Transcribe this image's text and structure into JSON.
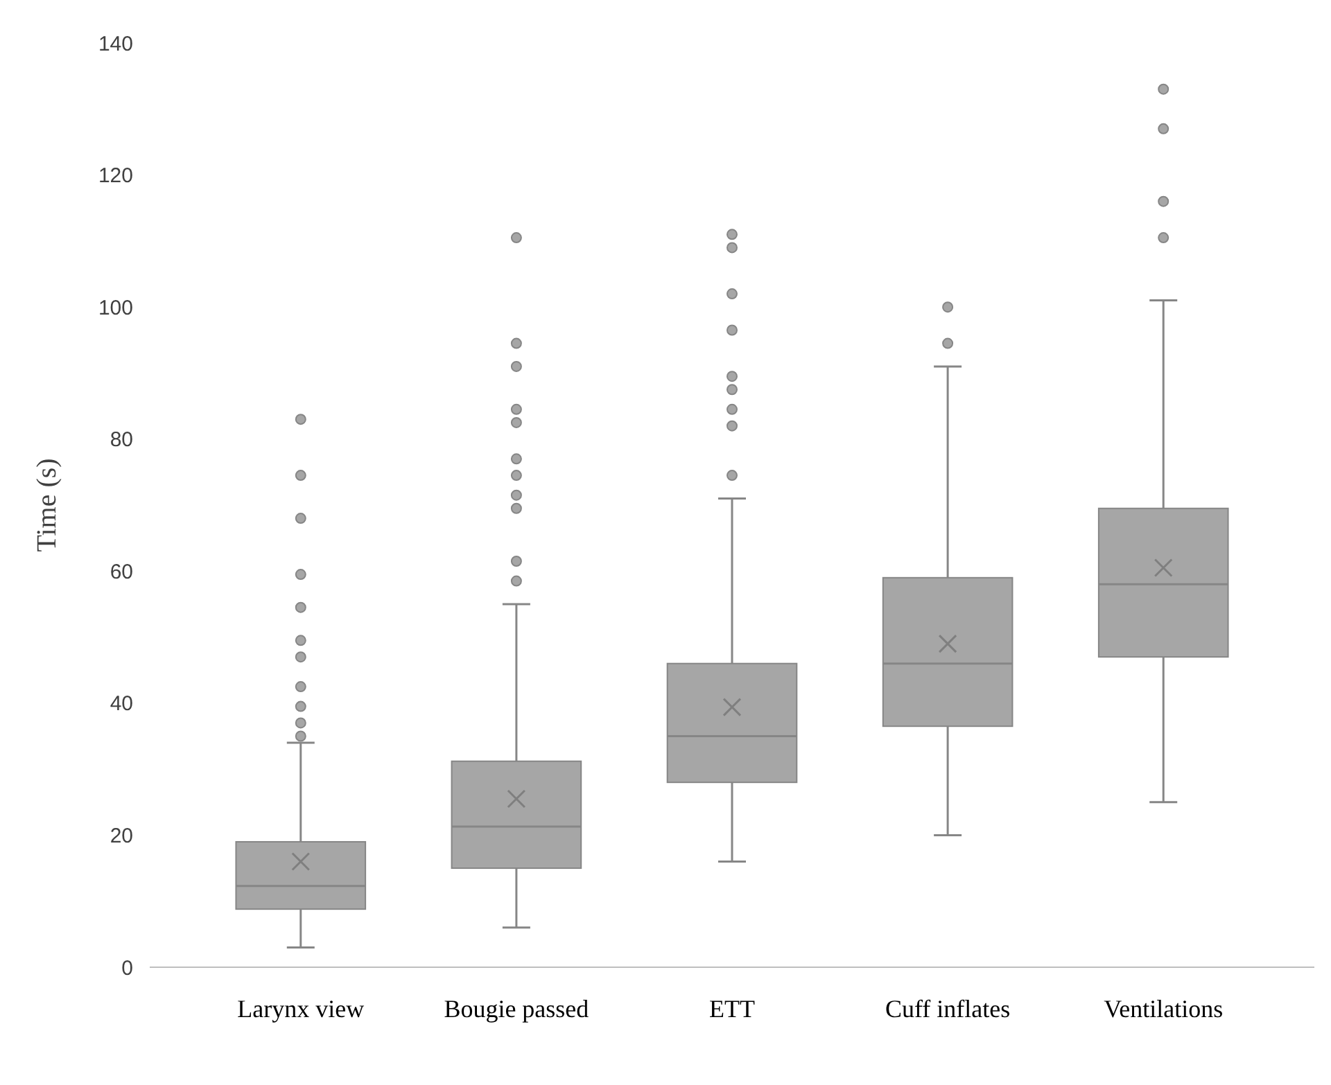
{
  "chart_data": {
    "type": "box",
    "ylabel": "Time (s)",
    "categories": [
      "Larynx view",
      "Bougie passed",
      "ETT",
      "Cuff inflates",
      "Ventilations"
    ],
    "color": "#a6a6a6",
    "ylim": [
      0,
      140
    ],
    "yticks": [
      0,
      20,
      40,
      60,
      80,
      100,
      120,
      140
    ],
    "grid": false,
    "boxes": [
      {
        "low": 3,
        "q1": 8.8,
        "median": 12.3,
        "q3": 19,
        "high": 34,
        "mean": 16,
        "outliers": [
          35,
          37,
          39.5,
          42.5,
          47,
          49.5,
          54.5,
          59.5,
          68,
          74.5,
          83
        ]
      },
      {
        "low": 6,
        "q1": 15,
        "median": 21.3,
        "q3": 31.2,
        "high": 55,
        "mean": 25.5,
        "outliers": [
          58.5,
          61.5,
          69.5,
          71.5,
          74.5,
          77,
          82.5,
          84.5,
          91,
          94.5,
          110.5
        ]
      },
      {
        "low": 16,
        "q1": 28,
        "median": 35,
        "q3": 46,
        "high": 71,
        "mean": 39.4,
        "outliers": [
          74.5,
          82,
          84.5,
          87.5,
          89.5,
          96.5,
          102,
          109,
          111
        ]
      },
      {
        "low": 20,
        "q1": 36.5,
        "median": 46,
        "q3": 59,
        "high": 91,
        "mean": 49,
        "outliers": [
          94.5,
          100
        ]
      },
      {
        "low": 25,
        "q1": 47,
        "median": 58,
        "q3": 69.5,
        "high": 101,
        "mean": 60.5,
        "outliers": [
          110.5,
          116,
          127,
          133
        ]
      }
    ]
  }
}
